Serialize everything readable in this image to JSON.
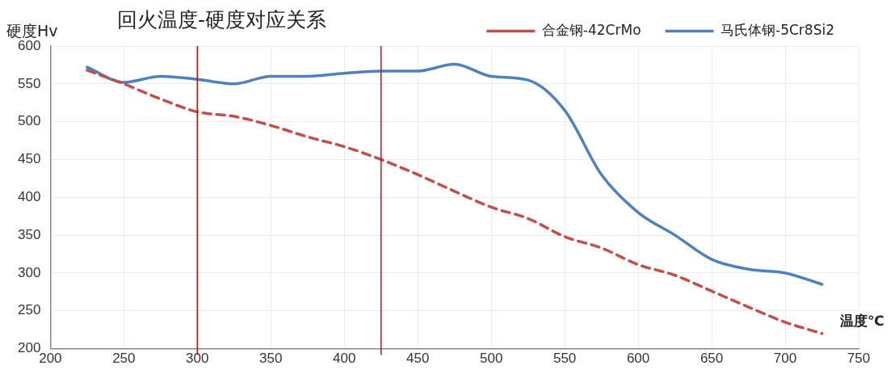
{
  "chart_data": {
    "type": "line",
    "title": "回火温度-硬度对应关系",
    "xlabel": "温度℃",
    "ylabel": "硬度Hv",
    "x": [
      225,
      250,
      275,
      300,
      325,
      350,
      375,
      400,
      425,
      450,
      475,
      500,
      525,
      550,
      575,
      600,
      625,
      650,
      675,
      700,
      725
    ],
    "series": [
      {
        "name": "合金钢-42CrMo",
        "color": "#c0504d",
        "line_style": "dashed",
        "values": [
          568,
          550,
          530,
          513,
          507,
          495,
          480,
          467,
          450,
          430,
          408,
          387,
          372,
          348,
          333,
          311,
          297,
          276,
          255,
          235,
          220
        ]
      },
      {
        "name": "马氏体钢-5Cr8Si2",
        "color": "#4f81bd",
        "line_style": "solid",
        "values": [
          572,
          552,
          560,
          556,
          550,
          560,
          560,
          564,
          567,
          567,
          576,
          560,
          555,
          515,
          430,
          380,
          350,
          318,
          305,
          300,
          285
        ]
      }
    ],
    "xlim": [
      200,
      750
    ],
    "xticks": [
      200,
      250,
      300,
      350,
      400,
      450,
      500,
      550,
      600,
      650,
      700,
      750
    ],
    "ylim": [
      200,
      600
    ],
    "yticks": [
      200,
      250,
      300,
      350,
      400,
      450,
      500,
      550,
      600
    ],
    "ref_lines": [
      {
        "axis": "x",
        "value": 300,
        "color": "#e00000"
      },
      {
        "axis": "x",
        "value": 425,
        "color": "#e00000"
      }
    ],
    "grid": true,
    "legend": "top right",
    "marker": "none"
  }
}
